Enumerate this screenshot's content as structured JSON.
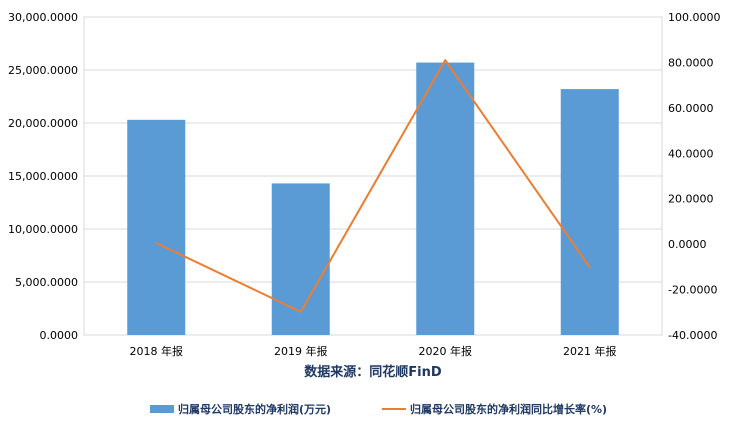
{
  "chart_data": {
    "type": "bar",
    "categories": [
      "2018 年报",
      "2019 年报",
      "2020 年报",
      "2021 年报"
    ],
    "series": [
      {
        "name": "归属母公司股东的净利润(万元)",
        "kind": "bar",
        "axis": "left",
        "color": "#5B9BD5",
        "values": [
          20300,
          14300,
          25700,
          23200
        ]
      },
      {
        "name": "归属母公司股东的净利润同比增长率(%)",
        "kind": "line",
        "axis": "right",
        "color": "#ED7D31",
        "values": [
          0.5,
          -29.8,
          81.0,
          -10.2
        ]
      }
    ],
    "left_axis": {
      "range": [
        0,
        30000
      ],
      "ticks": [
        0,
        5000,
        10000,
        15000,
        20000,
        25000,
        30000
      ],
      "tick_labels": [
        "0.0000",
        "5,000.0000",
        "10,000.0000",
        "15,000.0000",
        "20,000.0000",
        "25,000.0000",
        "30,000.0000"
      ]
    },
    "right_axis": {
      "range": [
        -40,
        100
      ],
      "ticks": [
        -40,
        -20,
        0,
        20,
        40,
        60,
        80,
        100
      ],
      "tick_labels": [
        "-40.0000",
        "-20.0000",
        "0.0000",
        "20.0000",
        "40.0000",
        "60.0000",
        "80.0000",
        "100.0000"
      ]
    },
    "source_note": "数据来源：同花顺FinD",
    "grid": true,
    "legend_position": "bottom"
  }
}
